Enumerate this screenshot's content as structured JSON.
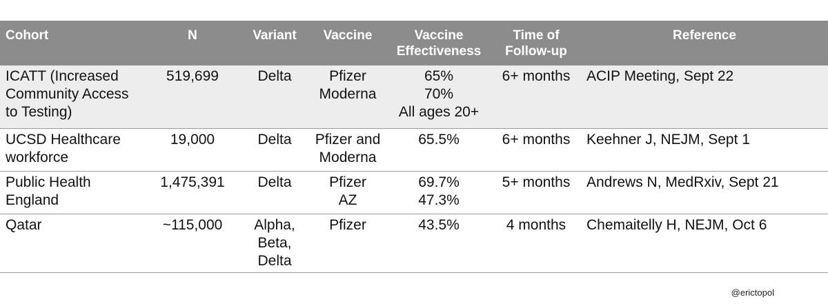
{
  "table": {
    "headers": {
      "cohort": [
        "Cohort"
      ],
      "n": [
        "N"
      ],
      "variant": [
        "Variant"
      ],
      "vaccine": [
        "Vaccine"
      ],
      "ve": [
        "Vaccine",
        "Effectiveness"
      ],
      "time": [
        "Time of",
        "Follow-up"
      ],
      "reference": [
        "Reference"
      ]
    },
    "rows": [
      {
        "cohort": [
          "ICATT (Increased",
          "Community Access",
          "to Testing)"
        ],
        "n": [
          "519,699"
        ],
        "variant": [
          "Delta"
        ],
        "vaccine": [
          "Pfizer",
          "Moderna"
        ],
        "ve": [
          "65%",
          "70%",
          "All ages 20+"
        ],
        "time": [
          "6+ months"
        ],
        "reference": [
          "ACIP Meeting, Sept 22"
        ]
      },
      {
        "cohort": [
          "UCSD Healthcare",
          "workforce"
        ],
        "n": [
          "19,000"
        ],
        "variant": [
          "Delta"
        ],
        "vaccine": [
          "Pfizer and",
          "Moderna"
        ],
        "ve": [
          "65.5%"
        ],
        "time": [
          "6+ months"
        ],
        "reference": [
          "Keehner J, NEJM, Sept 1"
        ]
      },
      {
        "cohort": [
          "Public Health",
          "England"
        ],
        "n": [
          "1,475,391"
        ],
        "variant": [
          "Delta"
        ],
        "vaccine": [
          "Pfizer",
          "AZ"
        ],
        "ve": [
          "69.7%",
          "47.3%"
        ],
        "time": [
          "5+ months"
        ],
        "reference": [
          "Andrews N, MedRxiv, Sept 21"
        ]
      },
      {
        "cohort": [
          "Qatar"
        ],
        "n": [
          "~115,000"
        ],
        "variant": [
          "Alpha,",
          "Beta,",
          "Delta"
        ],
        "vaccine": [
          "Pfizer"
        ],
        "ve": [
          "43.5%"
        ],
        "time": [
          "4 months"
        ],
        "reference": [
          "Chemaitelly H, NEJM, Oct 6"
        ]
      }
    ]
  },
  "credit": "@erictopol",
  "colors": {
    "header_bg": "#8c8c8c",
    "header_text": "#ffffff",
    "shaded_row": "#ededed",
    "rule": "#9a9a9a"
  }
}
